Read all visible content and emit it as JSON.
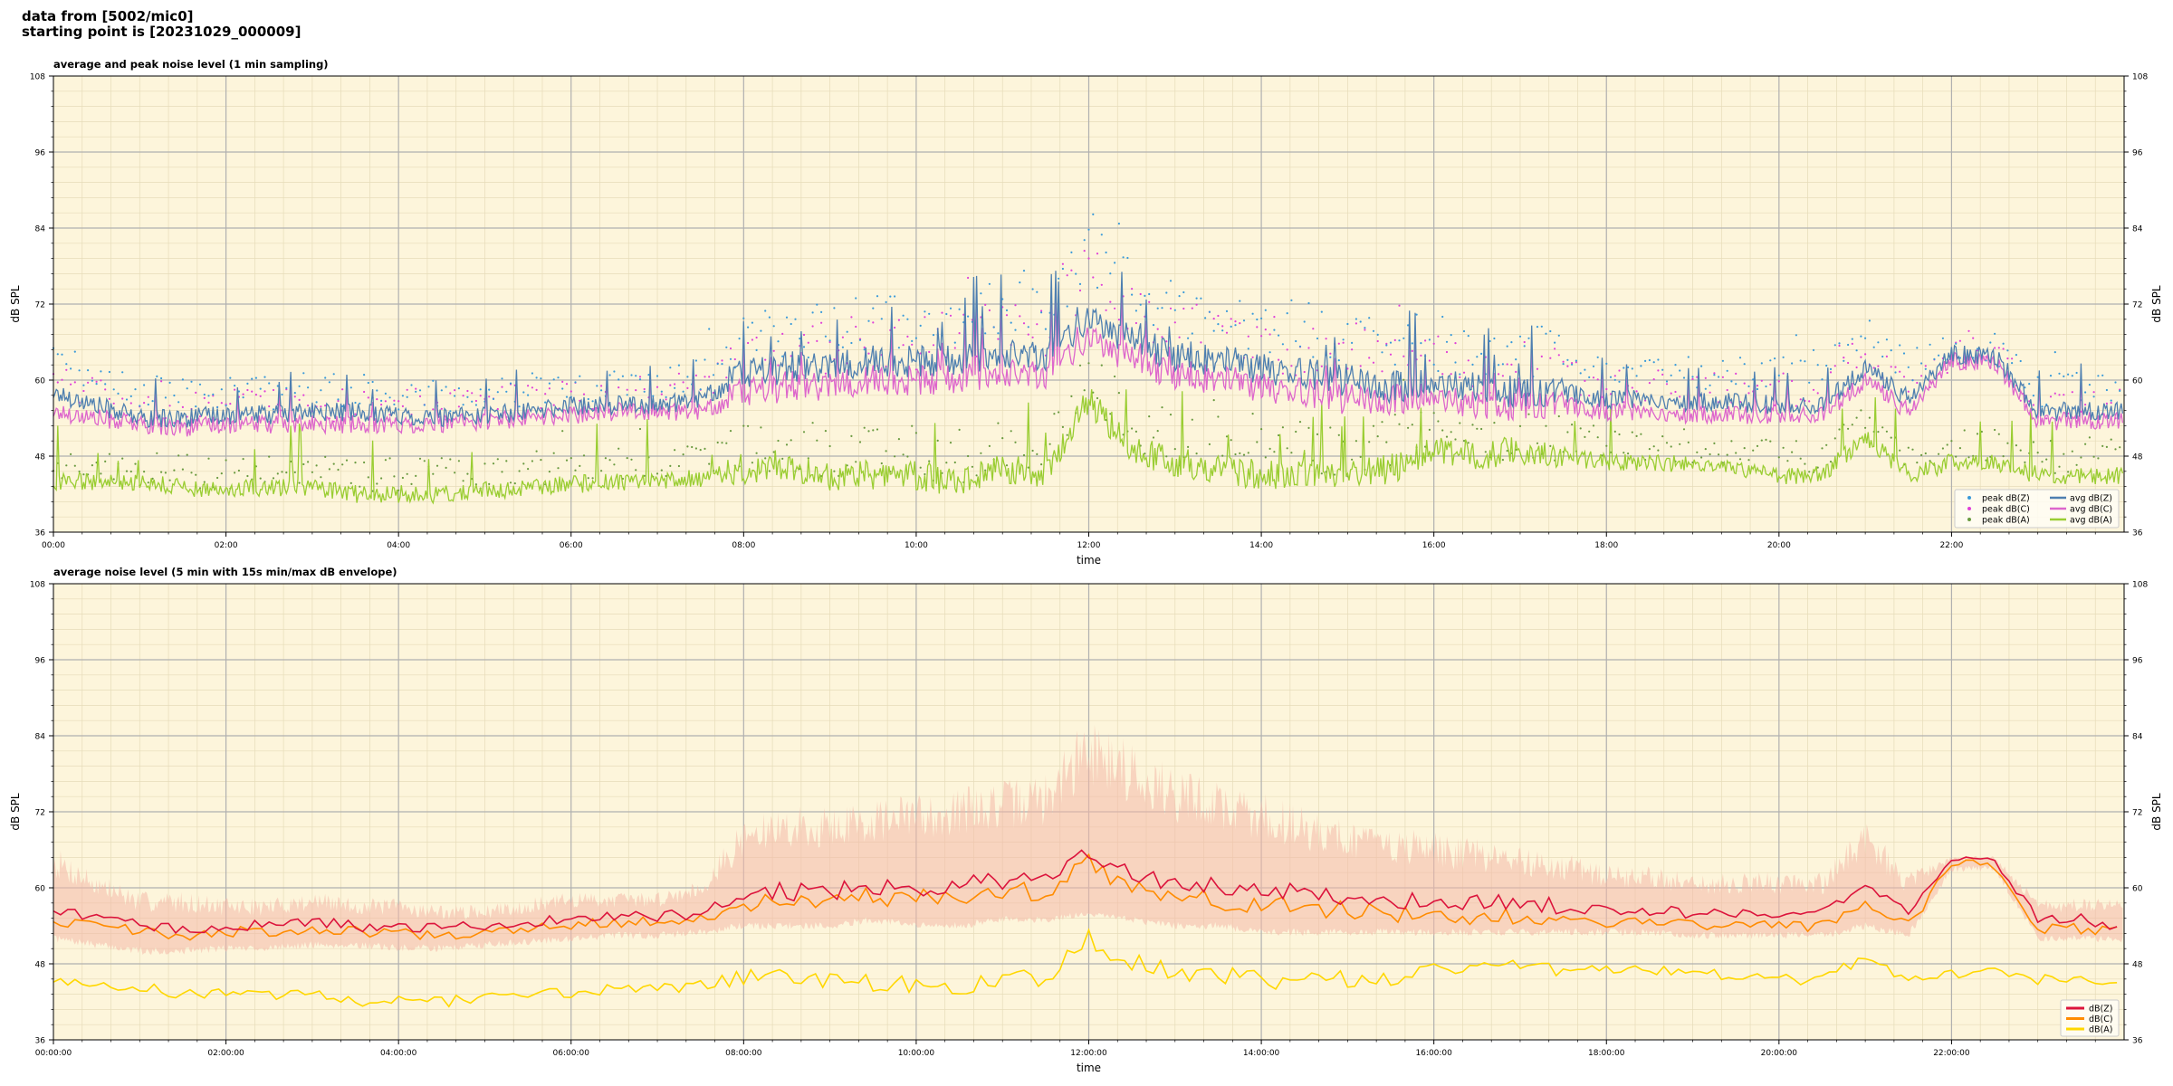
{
  "header": {
    "line1": "data from [5002/mic0]",
    "line2": "starting point is [20231029_000009]"
  },
  "chart_data": [
    {
      "type": "line",
      "title": "average and peak noise level (1 min sampling)",
      "xlabel": "time",
      "ylabel": "dB SPL",
      "ylim": [
        36,
        108
      ],
      "xlim_hours": [
        0,
        24
      ],
      "yticks": [
        "36",
        "48",
        "60",
        "72",
        "84",
        "96",
        "108"
      ],
      "xtick_labels": [
        "00:00",
        "02:00",
        "04:00",
        "06:00",
        "08:00",
        "10:00",
        "12:00",
        "14:00",
        "16:00",
        "18:00",
        "20:00",
        "22:00"
      ],
      "grid": true,
      "legend_position": "bottom-right",
      "colors": {
        "background": "#fdf5db",
        "zavg": "#4e7fb0",
        "cavg": "#dd66cc",
        "aavg": "#9acd32",
        "zpeak": "#3a9ad9",
        "cpeak": "#e040d8",
        "apeak": "#6a9a40"
      },
      "legend": [
        {
          "label": "peak dB(Z)",
          "kind": "marker",
          "color": "#3a9ad9"
        },
        {
          "label": "peak dB(C)",
          "kind": "marker",
          "color": "#e040d8"
        },
        {
          "label": "peak dB(A)",
          "kind": "marker",
          "color": "#6a9a40"
        },
        {
          "label": "avg dB(Z)",
          "kind": "line",
          "color": "#4e7fb0"
        },
        {
          "label": "avg dB(C)",
          "kind": "line",
          "color": "#dd66cc"
        },
        {
          "label": "avg dB(A)",
          "kind": "line",
          "color": "#9acd32"
        }
      ],
      "hours": [
        0,
        0.5,
        1,
        1.5,
        2,
        2.5,
        3,
        3.5,
        4,
        4.5,
        5,
        5.5,
        6,
        6.5,
        7,
        7.5,
        8,
        8.5,
        9,
        9.5,
        10,
        10.5,
        11,
        11.5,
        12,
        12.5,
        13,
        13.5,
        14,
        14.5,
        15,
        15.5,
        16,
        16.5,
        17,
        17.5,
        18,
        18.5,
        19,
        19.5,
        20,
        20.5,
        21,
        21.5,
        22,
        22.5,
        23,
        23.5,
        24
      ],
      "series": [
        {
          "name": "avg dB(Z)",
          "values": [
            58,
            56,
            54,
            54,
            54.5,
            54.5,
            55,
            55,
            54.5,
            54,
            54.5,
            55,
            56,
            56,
            56,
            57,
            61,
            62,
            62,
            63,
            63,
            63,
            64,
            64,
            70,
            66,
            64,
            63,
            62,
            61,
            60,
            59,
            59,
            59,
            58,
            58,
            57,
            57,
            56.5,
            56.5,
            56,
            56,
            62,
            57,
            64,
            64,
            55,
            55,
            55
          ]
        },
        {
          "name": "avg dB(C)",
          "values": [
            55,
            54,
            53,
            52.5,
            53,
            53,
            53,
            53,
            53,
            53,
            53.5,
            54,
            54.5,
            55,
            55,
            55,
            58,
            59,
            59,
            60,
            60,
            60,
            61,
            61,
            67,
            63,
            61,
            60,
            59,
            58,
            57,
            57,
            57,
            56,
            56,
            56,
            55,
            55,
            54.5,
            54.5,
            54.5,
            54.5,
            60,
            55,
            63,
            63,
            53.5,
            53.5,
            53.5
          ]
        },
        {
          "name": "avg dB(A)",
          "values": [
            44,
            44,
            44,
            43,
            43,
            43,
            43,
            42,
            42,
            42,
            42.5,
            43,
            43.5,
            44,
            44,
            44.5,
            46,
            46,
            45,
            45,
            45,
            44,
            46,
            45,
            57,
            49,
            47,
            46,
            45,
            45,
            45,
            46,
            49,
            48,
            49,
            48,
            47,
            47,
            46.5,
            46,
            45,
            45,
            51,
            45,
            47,
            47,
            45,
            45,
            45
          ]
        },
        {
          "name": "peak dB(Z)",
          "values": [
            63,
            61,
            58,
            58,
            58,
            58,
            58.5,
            58.5,
            58,
            57.5,
            58,
            58.5,
            59,
            59.5,
            59.5,
            61,
            67,
            68,
            68,
            69,
            69,
            70,
            71,
            71,
            80,
            75,
            71,
            70,
            69,
            68,
            67,
            66,
            66,
            65,
            65,
            64,
            62,
            62,
            61,
            61,
            61,
            61,
            68,
            62,
            65,
            65,
            58.5,
            58.5,
            58.5
          ]
        },
        {
          "name": "peak dB(C)",
          "values": [
            60,
            58,
            56,
            55.5,
            56,
            56,
            56,
            56,
            56,
            56,
            56.5,
            57,
            57.5,
            58,
            58,
            59,
            64,
            65,
            65,
            66,
            66,
            67,
            68,
            68,
            77,
            72,
            68,
            67,
            66,
            65,
            64,
            63,
            63,
            62,
            62,
            61,
            59,
            59,
            58.5,
            58.5,
            58.5,
            58.5,
            65,
            59,
            64,
            64,
            56,
            56,
            56
          ]
        },
        {
          "name": "peak dB(A)",
          "values": [
            47,
            47,
            46,
            45.5,
            45.5,
            45.5,
            45.5,
            45,
            45,
            45,
            45.5,
            46,
            46.5,
            47,
            47,
            47.5,
            50,
            50,
            49,
            49,
            49,
            48,
            50,
            49,
            61,
            53,
            51,
            50,
            49,
            49,
            49,
            50,
            52,
            51,
            52,
            51,
            50,
            50,
            49.5,
            49,
            48,
            48,
            54,
            48,
            50,
            50,
            48,
            48,
            48
          ]
        }
      ]
    },
    {
      "type": "line",
      "title": "average noise level (5 min with 15s min/max dB envelope)",
      "xlabel": "time",
      "ylabel": "dB SPL",
      "ylim": [
        36,
        108
      ],
      "xlim_hours": [
        0,
        24
      ],
      "yticks": [
        "36",
        "48",
        "60",
        "72",
        "84",
        "96",
        "108"
      ],
      "xtick_labels": [
        "00:00:00",
        "02:00:00",
        "04:00:00",
        "06:00:00",
        "08:00:00",
        "10:00:00",
        "12:00:00",
        "14:00:00",
        "16:00:00",
        "18:00:00",
        "20:00:00",
        "22:00:00"
      ],
      "grid": true,
      "legend_position": "bottom-right",
      "colors": {
        "background": "#fdf5db",
        "z": "#dc143c",
        "c": "#ff8c00",
        "a": "#ffd700",
        "envelope": "#f4b8a8"
      },
      "legend": [
        {
          "label": "dB(Z)",
          "color": "#dc143c"
        },
        {
          "label": "dB(C)",
          "color": "#ff8c00"
        },
        {
          "label": "dB(A)",
          "color": "#ffd700"
        }
      ],
      "hours": [
        0,
        0.5,
        1,
        1.5,
        2,
        2.5,
        3,
        3.5,
        4,
        4.5,
        5,
        5.5,
        6,
        6.5,
        7,
        7.5,
        8,
        8.5,
        9,
        9.5,
        10,
        10.5,
        11,
        11.5,
        12,
        12.5,
        13,
        13.5,
        14,
        14.5,
        15,
        15.5,
        16,
        16.5,
        17,
        17.5,
        18,
        18.5,
        19,
        19.5,
        20,
        20.5,
        21,
        21.5,
        22,
        22.5,
        23,
        23.5,
        24
      ],
      "envelope_max": [
        66,
        62,
        59,
        59,
        58,
        58,
        59,
        58,
        58,
        57,
        57,
        58,
        59,
        59,
        59,
        61,
        70,
        72,
        72,
        73,
        74,
        75,
        76,
        77,
        86,
        82,
        78,
        76,
        74,
        72,
        70,
        69,
        68,
        67,
        66,
        65,
        63,
        63,
        62,
        62,
        62,
        62,
        70,
        62,
        65,
        65,
        58,
        58,
        58
      ],
      "envelope_min": [
        52,
        51,
        50,
        50,
        50.5,
        50.5,
        51,
        51,
        50.5,
        50.5,
        51,
        51.5,
        52,
        52.5,
        52.5,
        53,
        54,
        54,
        54,
        55,
        54,
        54,
        55,
        55,
        56,
        55,
        54,
        54,
        53,
        53,
        53,
        53,
        53,
        53,
        53,
        53,
        53,
        53,
        52.5,
        52.5,
        52.5,
        52.5,
        54,
        52.5,
        63,
        63,
        52,
        52,
        52
      ],
      "series": [
        {
          "name": "dB(Z)",
          "values": [
            56,
            55.5,
            54,
            53.5,
            54,
            54,
            54.5,
            54,
            53.8,
            53.5,
            54,
            54.5,
            55,
            55.5,
            55.5,
            56,
            59,
            59.5,
            59.5,
            60,
            60,
            60.5,
            61,
            61.5,
            66,
            62,
            60.5,
            60,
            59.5,
            59,
            58.5,
            58,
            58,
            57.5,
            57.5,
            57,
            56.5,
            56.5,
            56,
            56,
            56,
            56,
            60,
            56,
            64,
            64,
            55,
            55,
            54
          ]
        },
        {
          "name": "dB(C)",
          "values": [
            54.5,
            54,
            53,
            52.5,
            53,
            53,
            53.5,
            53,
            52.8,
            52.5,
            53,
            53.5,
            54,
            54.5,
            54.5,
            55,
            57.5,
            58,
            58,
            58.5,
            58.5,
            59,
            59.5,
            59.5,
            64,
            60,
            58.5,
            58,
            57.5,
            57,
            56.5,
            56,
            56,
            55.5,
            55.5,
            55,
            54.5,
            54.5,
            54,
            54,
            54,
            54,
            58,
            54,
            63.5,
            63.5,
            53.5,
            53.5,
            53
          ]
        },
        {
          "name": "dB(A)",
          "values": [
            45,
            44.5,
            44.5,
            43,
            43.5,
            43,
            43.5,
            42,
            42,
            42,
            42.5,
            43,
            43.5,
            44,
            44,
            44.5,
            46,
            46,
            45.5,
            45,
            45,
            44.5,
            45.5,
            45.5,
            52,
            48,
            47,
            46,
            45.5,
            45.5,
            45.5,
            46,
            48,
            47.5,
            48,
            47.5,
            47,
            47,
            46.5,
            46,
            45.5,
            45.5,
            49,
            45.5,
            46.5,
            46.5,
            45.5,
            45.5,
            45.5
          ]
        }
      ]
    }
  ]
}
